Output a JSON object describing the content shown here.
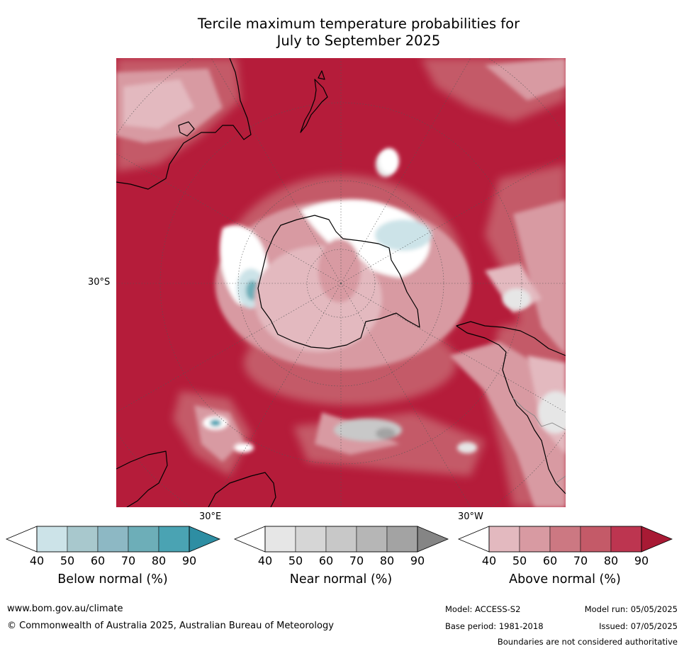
{
  "title": {
    "line1": "Tercile maximum temperature probabilities for",
    "line2": "July to September 2025"
  },
  "map": {
    "projection": "south-polar-stereographic",
    "background_color": "#b51c3a",
    "coastline_color": "#000000",
    "graticule_color": "#555555",
    "labels": {
      "lat": "30°S",
      "lon_east": "30°E",
      "lon_west": "30°W"
    }
  },
  "legend": {
    "ticks": [
      "40",
      "50",
      "60",
      "70",
      "80",
      "90"
    ],
    "bars": [
      {
        "name": "Below normal (%)",
        "low_color": "#ffffff",
        "colors": [
          "#cce3e8",
          "#a8c8cd",
          "#8db8c4",
          "#6daeb8",
          "#4aa3b3"
        ],
        "high_color": "#2e8ea3"
      },
      {
        "name": "Near normal (%)",
        "low_color": "#ffffff",
        "colors": [
          "#e6e6e6",
          "#d6d6d6",
          "#c8c8c8",
          "#b6b6b6",
          "#a3a3a3"
        ],
        "high_color": "#858585"
      },
      {
        "name": "Above normal (%)",
        "low_color": "#ffffff",
        "colors": [
          "#e3b9bf",
          "#d89aa2",
          "#cc7882",
          "#c45a68",
          "#bd3550"
        ],
        "high_color": "#a81a34"
      }
    ]
  },
  "footer": {
    "url": "www.bom.gov.au/climate",
    "copyright": "© Commonwealth of Australia 2025, Australian Bureau of Meteorology",
    "model": "Model: ACCESS-S2",
    "model_run": "Model run: 05/05/2025",
    "base_period": "Base period: 1981-2018",
    "issued": "Issued: 07/05/2025",
    "disclaimer": "Boundaries are not considered authoritative"
  }
}
